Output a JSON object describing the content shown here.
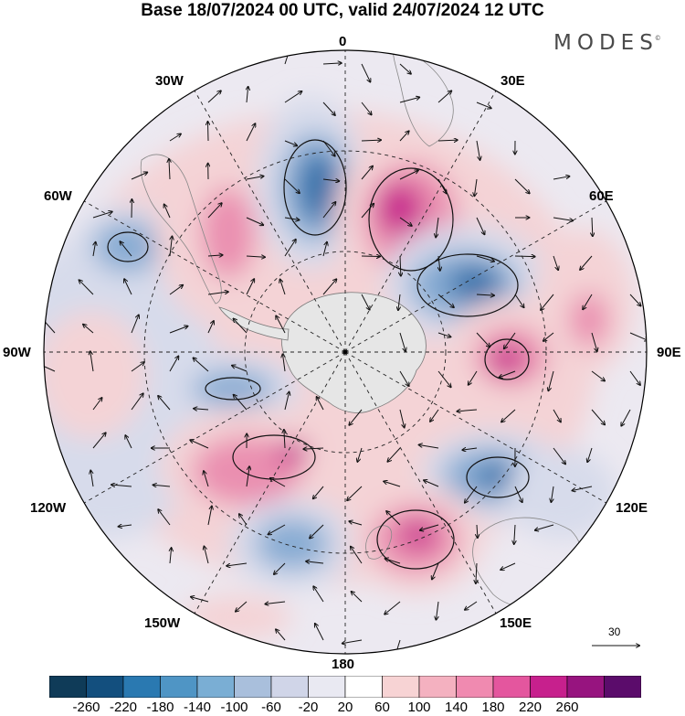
{
  "title": "Base 18/07/2024 00 UTC, valid 24/07/2024 12 UTC",
  "brand": "MODES",
  "brand_mark": "©",
  "map": {
    "projection": "south-polar-stereographic",
    "longitude_labels": {
      "top": "0",
      "top_right": "30E",
      "right_upper": "60E",
      "right": "90E",
      "right_lower": "120E",
      "bottom_right": "150E",
      "bottom": "180",
      "bottom_left": "150W",
      "left_lower": "120W",
      "left": "90W",
      "left_upper": "60W",
      "top_left": "30W"
    },
    "reference_vector": "30",
    "colors": {
      "strong_negative": "#2d6ea8",
      "negative": "#86abd3",
      "weak_negative": "#d7dbeb",
      "weak_positive": "#f4d3d6",
      "positive": "#ea8fb0",
      "strong_positive": "#c7208d",
      "land": "#9a9a9a"
    }
  },
  "colorbar": {
    "ticks": [
      "-260",
      "-220",
      "-180",
      "-140",
      "-100",
      "-60",
      "-20",
      "20",
      "60",
      "100",
      "140",
      "180",
      "220",
      "260"
    ],
    "colors": [
      "#0f3b58",
      "#134f7e",
      "#2a79b1",
      "#4f95c5",
      "#7aaed4",
      "#a9bfdc",
      "#d0d5e8",
      "#e9e9f2",
      "#ffffff",
      "#f7d3d4",
      "#f4b1c0",
      "#f08ab0",
      "#e4569e",
      "#c7208d",
      "#97147f",
      "#5b0c6b"
    ]
  }
}
